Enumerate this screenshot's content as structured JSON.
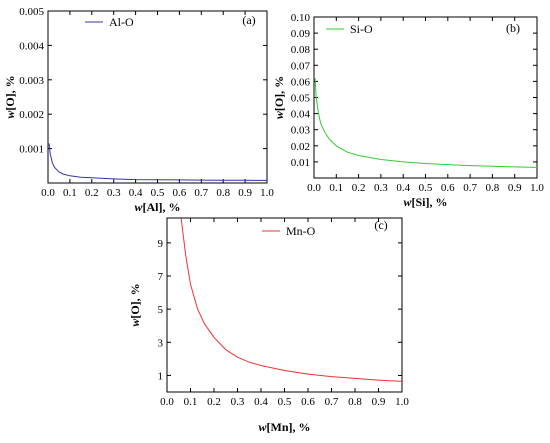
{
  "chart_data": [
    {
      "id": "a",
      "type": "line",
      "panel_label": "(a)",
      "xlabel_var": "w",
      "xlabel_rest": "[Al], %",
      "ylabel_var": "w",
      "ylabel_rest": "[O], %",
      "xlim": [
        0,
        1.0
      ],
      "ylim": [
        0,
        0.005
      ],
      "xticks": [
        0.0,
        0.1,
        0.2,
        0.3,
        0.4,
        0.5,
        0.6,
        0.7,
        0.8,
        0.9,
        1.0
      ],
      "xtick_labels": [
        "0.0",
        "0.1",
        "0.2",
        "0.3",
        "0.4",
        "0.5",
        "0.6",
        "0.7",
        "0.8",
        "0.9",
        "1.0"
      ],
      "yticks": [
        0.001,
        0.002,
        0.003,
        0.004,
        0.005
      ],
      "ytick_labels": [
        "0.001",
        "0.002",
        "0.003",
        "0.004",
        "0.005"
      ],
      "legend_position": "top-left",
      "series": [
        {
          "name": "Al-O",
          "color": "#3333aa",
          "x": [
            0.005,
            0.01,
            0.02,
            0.03,
            0.05,
            0.07,
            0.1,
            0.15,
            0.2,
            0.3,
            0.4,
            0.5,
            0.6,
            0.7,
            0.8,
            0.9,
            1.0
          ],
          "y": [
            0.00115,
            0.00085,
            0.00058,
            0.00045,
            0.00032,
            0.00026,
            0.00021,
            0.00017,
            0.00015,
            0.00012,
            0.0001,
            9.5e-05,
            9e-05,
            8.5e-05,
            8e-05,
            7.8e-05,
            7.5e-05
          ]
        }
      ]
    },
    {
      "id": "b",
      "type": "line",
      "panel_label": "(b)",
      "xlabel_var": "w",
      "xlabel_rest": "[Si], %",
      "ylabel_var": "w",
      "ylabel_rest": "[O], %",
      "xlim": [
        0,
        1.0
      ],
      "ylim": [
        0,
        0.1
      ],
      "xticks": [
        0.0,
        0.1,
        0.2,
        0.3,
        0.4,
        0.5,
        0.6,
        0.7,
        0.8,
        0.9,
        1.0
      ],
      "xtick_labels": [
        "0.0",
        "0.1",
        "0.2",
        "0.3",
        "0.4",
        "0.5",
        "0.6",
        "0.7",
        "0.8",
        "0.9",
        "1.0"
      ],
      "yticks": [
        0.01,
        0.02,
        0.03,
        0.04,
        0.05,
        0.06,
        0.07,
        0.08,
        0.09,
        0.1
      ],
      "ytick_labels": [
        "0.01",
        "0.02",
        "0.03",
        "0.04",
        "0.05",
        "0.06",
        "0.07",
        "0.08",
        "0.09",
        "0.10"
      ],
      "legend_position": "top-left",
      "series": [
        {
          "name": "Si-O",
          "color": "#33cc33",
          "x": [
            0.005,
            0.01,
            0.02,
            0.03,
            0.05,
            0.07,
            0.1,
            0.15,
            0.2,
            0.3,
            0.4,
            0.5,
            0.6,
            0.7,
            0.8,
            0.9,
            1.0
          ],
          "y": [
            0.062,
            0.05,
            0.04,
            0.034,
            0.028,
            0.024,
            0.02,
            0.016,
            0.014,
            0.0115,
            0.01,
            0.009,
            0.0083,
            0.0077,
            0.0073,
            0.0069,
            0.0066
          ]
        }
      ]
    },
    {
      "id": "c",
      "type": "line",
      "panel_label": "(c)",
      "xlabel_var": "w",
      "xlabel_rest": "[Mn], %",
      "ylabel_var": "w",
      "ylabel_rest": "[O], %",
      "xlim": [
        0,
        1.0
      ],
      "ylim": [
        0,
        10.5
      ],
      "xticks": [
        0.0,
        0.1,
        0.2,
        0.3,
        0.4,
        0.5,
        0.6,
        0.7,
        0.8,
        0.9,
        1.0
      ],
      "xtick_labels": [
        "0.0",
        "0.1",
        "0.2",
        "0.3",
        "0.4",
        "0.5",
        "0.6",
        "0.7",
        "0.8",
        "0.9",
        "1.0"
      ],
      "yticks": [
        1,
        3,
        5,
        7,
        9
      ],
      "ytick_labels": [
        "1",
        "3",
        "5",
        "7",
        "9"
      ],
      "legend_position": "top-left",
      "series": [
        {
          "name": "Mn-O",
          "color": "#ee3333",
          "x": [
            0.06,
            0.08,
            0.1,
            0.13,
            0.16,
            0.2,
            0.25,
            0.3,
            0.35,
            0.4,
            0.5,
            0.6,
            0.7,
            0.8,
            0.9,
            1.0
          ],
          "y": [
            10.5,
            8.2,
            6.5,
            5.0,
            4.1,
            3.3,
            2.55,
            2.1,
            1.8,
            1.6,
            1.3,
            1.08,
            0.93,
            0.82,
            0.72,
            0.64
          ]
        }
      ]
    }
  ]
}
